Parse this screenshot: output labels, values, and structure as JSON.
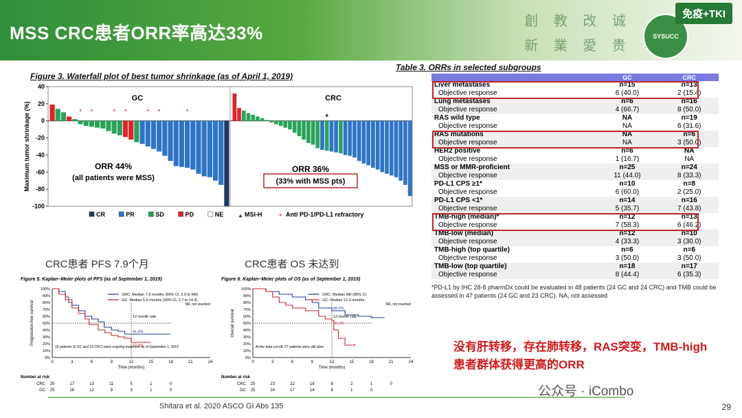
{
  "header": {
    "title": "MSS CRC患者ORR率高达33%",
    "tag": "免疫+TKI",
    "calligraphy": [
      "創",
      "教",
      "改",
      "诚",
      "新",
      "業",
      "愛",
      "贵"
    ],
    "logo_text": "SYSUCC"
  },
  "labels": {
    "pfs_label": "CRC患者 PFS 7.9个月",
    "os_label": "CRC患者 OS 未达到",
    "conclusion_line1": "没有肝转移，存在肺转移，RAS突变，TMB-high",
    "conclusion_line2": "患者群体获得更高的ORR",
    "wechat": "公众号 · iCombo",
    "footer": "Shitara et al. 2020 ASCO GI Abs 135",
    "page": "29"
  },
  "waterfall": {
    "title": "Figure 3. Waterfall plot of best tumor shrinkage  (as of April 1, 2019)",
    "ylabel": "Maximum tumor shrinkage (%)",
    "yticks": [
      "40",
      "20",
      "0",
      "-20",
      "-40",
      "-60",
      "-80",
      "-100"
    ],
    "panel_gc": "GC",
    "panel_crc": "CRC",
    "gc_orr": "ORR 44%",
    "gc_note": "(all patients were MSS)",
    "crc_orr": "ORR 36%",
    "crc_note": "(33% with MSS pts)",
    "legend": [
      {
        "label": "CR",
        "color": "#1f3864"
      },
      {
        "label": "PR",
        "color": "#2e75c6"
      },
      {
        "label": "SD",
        "color": "#2aa35a"
      },
      {
        "label": "PD",
        "color": "#e0242b"
      },
      {
        "label": "NE",
        "color": "#ffffff"
      },
      {
        "label": "MSI-H",
        "color": "#1f3864"
      },
      {
        "label": "Anti PD-1/PD-L1 refractory",
        "color": "#e0242b"
      }
    ],
    "colors": {
      "CR": "#1f3864",
      "PR": "#2e75c6",
      "SD": "#2aa35a",
      "PD": "#e0242b"
    }
  },
  "chart_data": [
    {
      "type": "bar",
      "title": "GC",
      "ylabel": "Maximum tumor shrinkage (%)",
      "ylim": [
        -100,
        40
      ],
      "values": [
        19,
        14,
        10,
        5,
        2,
        -4,
        -6,
        -7,
        -8,
        -9,
        -12,
        -15,
        -17,
        -19,
        -22,
        -25,
        -27,
        -30,
        -33,
        -36,
        -41,
        -47,
        -53,
        -54,
        -55,
        -57,
        -62,
        -65,
        -66,
        -70,
        -75,
        -100
      ],
      "response": [
        "PD",
        "SD",
        "SD",
        "PD",
        "SD",
        "SD",
        "SD",
        "SD",
        "SD",
        "SD",
        "SD",
        "SD",
        "SD",
        "PD",
        "PD",
        "SD",
        "PR",
        "PR",
        "PR",
        "PR",
        "PR",
        "PR",
        "PR",
        "PR",
        "PR",
        "PR",
        "PR",
        "PR",
        "PR",
        "PR",
        "PR",
        "CR"
      ],
      "refractory": [
        5,
        7,
        11,
        13,
        17,
        19,
        24
      ]
    },
    {
      "type": "bar",
      "title": "CRC",
      "ylabel": "Maximum tumor shrinkage (%)",
      "ylim": [
        -100,
        40
      ],
      "values": [
        32,
        15,
        12,
        9,
        7,
        5,
        3,
        1,
        -2,
        -4,
        -6,
        -8,
        -10,
        -14,
        -18,
        -22,
        -26,
        -28,
        -32,
        -34,
        -35,
        -36,
        -37,
        -38,
        -40,
        -41,
        -43,
        -47,
        -50,
        -52,
        -55,
        -57,
        -60,
        -62,
        -64,
        -66,
        -70,
        -75,
        -88
      ],
      "response": [
        "PD",
        "PD",
        "SD",
        "SD",
        "SD",
        "SD",
        "SD",
        "SD",
        "SD",
        "SD",
        "SD",
        "SD",
        "SD",
        "SD",
        "SD",
        "SD",
        "SD",
        "SD",
        "SD",
        "PR",
        "SD",
        "PR",
        "PR",
        "SD",
        "PR",
        "PR",
        "PR",
        "PR",
        "PR",
        "PR",
        "PR",
        "PR",
        "PR",
        "PR",
        "PR",
        "PR",
        "PR",
        "PR",
        "PR"
      ],
      "msih": [
        20
      ]
    },
    {
      "type": "line",
      "title": "Figure 5. Kaplan–Meier plots of PFS (as of September 1, 2019)",
      "xlabel": "Time (months)",
      "ylabel": "Progression-free survival",
      "xlim": [
        0,
        24
      ],
      "ylim": [
        0,
        100
      ],
      "xticks": [
        "0",
        "3",
        "6",
        "9",
        "12",
        "15",
        "18",
        "21",
        "24"
      ],
      "yticks": [
        "100%",
        "90%",
        "80%",
        "70%",
        "60%",
        "50%",
        "40%",
        "30%",
        "20%",
        "10%",
        "0%"
      ],
      "series": [
        {
          "name": "CRC: Median 7.9 months (95% CI, 2.9 to NR)",
          "color": "#1f3b8f",
          "x": [
            0,
            1,
            2,
            2.5,
            3,
            4,
            5,
            6,
            7,
            7.9,
            9,
            10,
            11,
            12,
            14,
            18
          ],
          "y": [
            100,
            96,
            88,
            80,
            76,
            68,
            60,
            56,
            52,
            44,
            40,
            38,
            34,
            34,
            34,
            34
          ]
        },
        {
          "name": "GC: Median 5.6 months (95% CI, 2.7 to 10.4)",
          "color": "#c0232c",
          "x": [
            0,
            1,
            2,
            3,
            4,
            5,
            5.6,
            7,
            8,
            9,
            10,
            11,
            12,
            13,
            15
          ],
          "y": [
            100,
            92,
            84,
            72,
            64,
            56,
            48,
            40,
            36,
            32,
            30,
            28,
            22,
            22,
            22
          ]
        }
      ],
      "annotations": [
        "NR, not reached",
        "12-month rate",
        "41.8%",
        "22.0%",
        "16 patients (6 GC and 10 CRC) were ongoing treatment as of September 1, 2019"
      ],
      "risk_table": {
        "label": "Number at risk",
        "rows": [
          {
            "name": "CRC",
            "values": [
              "25",
              "17",
              "13",
              "11",
              "5",
              "1",
              "0"
            ]
          },
          {
            "name": "GC",
            "values": [
              "25",
              "16",
              "12",
              "9",
              "3",
              "1",
              "0"
            ]
          }
        ]
      }
    },
    {
      "type": "line",
      "title": "Figure 6. Kaplan–Meier plots of OS (as of September 1, 2019)",
      "xlabel": "Time (months)",
      "ylabel": "Overall survival",
      "xlim": [
        0,
        24
      ],
      "ylim": [
        0,
        100
      ],
      "xticks": [
        "0",
        "3",
        "6",
        "9",
        "12",
        "15",
        "18",
        "21",
        "24"
      ],
      "yticks": [
        "100%",
        "90%",
        "80%",
        "70%",
        "60%",
        "50%",
        "40%",
        "30%",
        "20%",
        "10%",
        "0%"
      ],
      "series": [
        {
          "name": "CRC: Median NR (95% CI",
          "color": "#1f3b8f",
          "x": [
            0,
            2,
            4,
            6,
            8,
            9,
            10,
            12,
            14,
            16,
            18,
            20
          ],
          "y": [
            100,
            96,
            92,
            88,
            84,
            80,
            72,
            68,
            62,
            60,
            58,
            58
          ]
        },
        {
          "name": "GC: Median 12.3 months",
          "color": "#c0232c",
          "x": [
            0,
            2,
            3,
            4,
            5,
            6,
            8,
            10,
            11,
            12,
            12.3,
            13,
            14,
            15.5
          ],
          "y": [
            100,
            96,
            88,
            80,
            76,
            72,
            68,
            60,
            56,
            54,
            40,
            28,
            18,
            20
          ]
        }
      ],
      "annotations": [
        "NR, not reached",
        "12-month rate",
        "68.0%",
        "55.3%",
        "At the data cut-off, 27 patients were still alive"
      ],
      "risk_table": {
        "label": "Number at risk",
        "rows": [
          {
            "name": "CRC",
            "values": [
              "25",
              "23",
              "22",
              "18",
              "8",
              "2",
              "1",
              "0"
            ]
          },
          {
            "name": "GC",
            "values": [
              "25",
              "24",
              "17",
              "14",
              "8",
              "1",
              "0"
            ]
          }
        ]
      }
    }
  ],
  "orr_table": {
    "title": "Table 3. ORRs in selected subgroups",
    "columns": [
      "GC",
      "CRC"
    ],
    "rows": [
      {
        "label": "Liver metastases",
        "gc": "n=15",
        "crc": "n=13",
        "kind": "hd"
      },
      {
        "label": "Objective response",
        "gc": "6 (40.0)",
        "crc": "2 (15.4)",
        "kind": "sub"
      },
      {
        "label": "Lung metastases",
        "gc": "n=6",
        "crc": "n=16",
        "kind": "hd"
      },
      {
        "label": "Objective response",
        "gc": "4 (66.7)",
        "crc": "8 (50.0)",
        "kind": "sub"
      },
      {
        "label": "RAS wild type",
        "gc": "NA",
        "crc": "n=19",
        "kind": "hd"
      },
      {
        "label": "Objective response",
        "gc": "NA",
        "crc": "6 (31.6)",
        "kind": "sub"
      },
      {
        "label": "RAS mutations",
        "gc": "NA",
        "crc": "n=6",
        "kind": "hd"
      },
      {
        "label": "Objective response",
        "gc": "NA",
        "crc": "3 (50.0)",
        "kind": "sub"
      },
      {
        "label": "HER2 positive",
        "gc": "n=6",
        "crc": "NA",
        "kind": "hd"
      },
      {
        "label": "Objective response",
        "gc": "1 (16.7)",
        "crc": "NA",
        "kind": "sub"
      },
      {
        "label": "MSS or MMR-proficient",
        "gc": "n=25",
        "crc": "n=24",
        "kind": "hd"
      },
      {
        "label": "Objective response",
        "gc": "11 (44.0)",
        "crc": "8 (33.3)",
        "kind": "sub"
      },
      {
        "label": "PD-L1 CPS ≥1*",
        "gc": "n=10",
        "crc": "n=8",
        "kind": "hd"
      },
      {
        "label": "Objective response",
        "gc": "6 (60.0)",
        "crc": "2 (25.0)",
        "kind": "sub"
      },
      {
        "label": "PD-L1 CPS <1*",
        "gc": "n=14",
        "crc": "n=16",
        "kind": "hd"
      },
      {
        "label": "Objective response",
        "gc": "5 (35.7)",
        "crc": "7 (43.8)",
        "kind": "sub"
      },
      {
        "label": "TMB-high (median)*",
        "gc": "n=12",
        "crc": "n=13",
        "kind": "hd"
      },
      {
        "label": "Objective response",
        "gc": "7 (58.3)",
        "crc": "6 (46.2)",
        "kind": "sub"
      },
      {
        "label": "TMB-low (median)",
        "gc": "n=12",
        "crc": "n=10",
        "kind": "hd"
      },
      {
        "label": "Objective response",
        "gc": "4 (33.3)",
        "crc": "3 (30.0)",
        "kind": "sub"
      },
      {
        "label": "TMB-high (top quartile)",
        "gc": "n=6",
        "crc": "n=6",
        "kind": "hd"
      },
      {
        "label": "Objective response",
        "gc": "3 (50.0)",
        "crc": "3 (50.0)",
        "kind": "sub"
      },
      {
        "label": "TMB-low (top quartile)",
        "gc": "n=18",
        "crc": "n=17",
        "kind": "hd"
      },
      {
        "label": "Objective response",
        "gc": "8 (44.4)",
        "crc": "6 (35.3)",
        "kind": "sub"
      }
    ],
    "highlighted": [
      0,
      6,
      16
    ],
    "footnote": "*PD-L1 by IHC 28-8 pharmDx could be evaluated in 48 patients (24 GC and 24 CRC) and TMB could be assessed in 47 patients (24 GC and 23 CRC). NA, not assessed"
  }
}
